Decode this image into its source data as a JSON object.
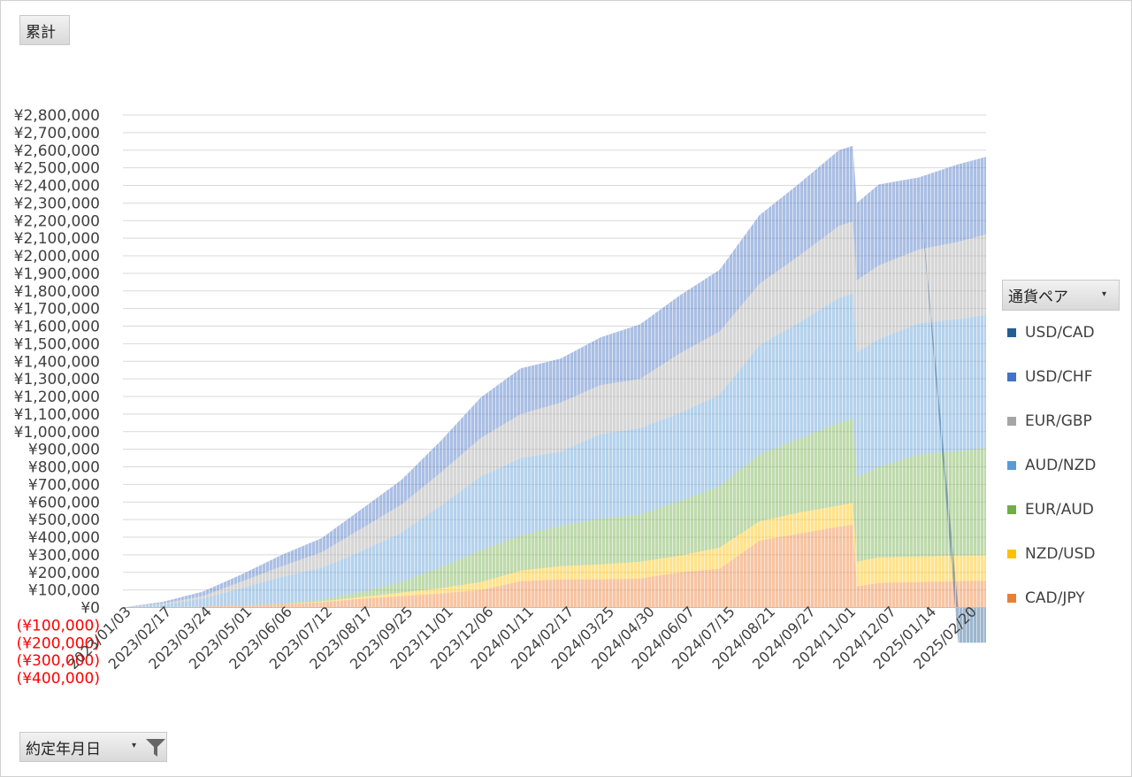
{
  "field_buttons": {
    "value_field": "累計",
    "axis_field": "約定年月日",
    "legend_field": "通貨ペア"
  },
  "icons": {
    "filter": "funnel-icon",
    "dropdown": "dropdown-arrow-icon"
  },
  "chart_data": {
    "type": "area",
    "stacked": true,
    "ylim": [
      -400000,
      2800000
    ],
    "y_step": 100000,
    "grid": true,
    "legend_position": "right",
    "y_ticks": [
      "¥2,800,000",
      "¥2,700,000",
      "¥2,600,000",
      "¥2,500,000",
      "¥2,400,000",
      "¥2,300,000",
      "¥2,200,000",
      "¥2,100,000",
      "¥2,000,000",
      "¥1,900,000",
      "¥1,800,000",
      "¥1,700,000",
      "¥1,600,000",
      "¥1,500,000",
      "¥1,400,000",
      "¥1,300,000",
      "¥1,200,000",
      "¥1,100,000",
      "¥1,000,000",
      "¥900,000",
      "¥800,000",
      "¥700,000",
      "¥600,000",
      "¥500,000",
      "¥400,000",
      "¥300,000",
      "¥200,000",
      "¥100,000",
      "¥0",
      "(¥100,000)",
      "(¥200,000)",
      "(¥300,000)",
      "(¥400,000)"
    ],
    "x_ticks": [
      "2023/01/03",
      "2023/02/17",
      "2023/03/24",
      "2023/05/01",
      "2023/06/06",
      "2023/07/12",
      "2023/08/17",
      "2023/09/25",
      "2023/11/01",
      "2023/12/06",
      "2024/01/11",
      "2024/02/17",
      "2024/03/25",
      "2024/04/30",
      "2024/06/07",
      "2024/07/15",
      "2024/08/21",
      "2024/09/27",
      "2024/11/01",
      "2024/12/07",
      "2025/01/14",
      "2025/02/20"
    ],
    "x": [
      0,
      1,
      2,
      3,
      4,
      5,
      6,
      7,
      8,
      9,
      10,
      11,
      12,
      13,
      14,
      15,
      16,
      17,
      18,
      18.35,
      18.45,
      19,
      20,
      21,
      21.7
    ],
    "series": [
      {
        "name": "CAD/JPY",
        "color": "#ED7D31",
        "values": [
          0,
          2000,
          5000,
          10000,
          20000,
          30000,
          50000,
          65000,
          80000,
          100000,
          150000,
          160000,
          160000,
          165000,
          200000,
          220000,
          380000,
          420000,
          460000,
          470000,
          120000,
          140000,
          145000,
          150000,
          152000
        ]
      },
      {
        "name": "NZD/USD",
        "color": "#FFC000",
        "values": [
          0,
          0,
          0,
          0,
          0,
          5000,
          10000,
          20000,
          30000,
          45000,
          60000,
          75000,
          85000,
          95000,
          95000,
          120000,
          110000,
          120000,
          120000,
          125000,
          140000,
          145000,
          145000,
          145000,
          145000
        ]
      },
      {
        "name": "EUR/AUD",
        "color": "#70AD47",
        "values": [
          0,
          0,
          0,
          0,
          5000,
          10000,
          30000,
          60000,
          120000,
          180000,
          200000,
          230000,
          260000,
          270000,
          310000,
          350000,
          380000,
          420000,
          470000,
          480000,
          480000,
          515000,
          580000,
          595000,
          610000
        ]
      },
      {
        "name": "AUD/NZD",
        "color": "#5B9BD5",
        "values": [
          0,
          15000,
          45000,
          100000,
          150000,
          180000,
          230000,
          280000,
          350000,
          420000,
          440000,
          420000,
          480000,
          490000,
          500000,
          520000,
          620000,
          660000,
          710000,
          710000,
          710000,
          725000,
          745000,
          750000,
          755000
        ]
      },
      {
        "name": "EUR/GBP",
        "color": "#A5A5A5",
        "values": [
          0,
          5000,
          15000,
          40000,
          60000,
          90000,
          130000,
          160000,
          190000,
          220000,
          250000,
          280000,
          280000,
          280000,
          340000,
          360000,
          350000,
          380000,
          410000,
          410000,
          410000,
          420000,
          420000,
          440000,
          460000
        ]
      },
      {
        "name": "USD/CHF",
        "color": "#4472C4",
        "values": [
          0,
          10000,
          25000,
          40000,
          65000,
          80000,
          110000,
          140000,
          180000,
          230000,
          260000,
          250000,
          270000,
          310000,
          330000,
          350000,
          390000,
          410000,
          430000,
          430000,
          440000,
          460000,
          410000,
          440000,
          440000
        ]
      },
      {
        "name": "USD/CAD",
        "color": "#255E91",
        "values": [
          0,
          0,
          0,
          0,
          0,
          0,
          0,
          0,
          0,
          0,
          0,
          0,
          0,
          0,
          0,
          0,
          0,
          0,
          0,
          0,
          0,
          0,
          0,
          -200000,
          -200000
        ]
      }
    ]
  }
}
